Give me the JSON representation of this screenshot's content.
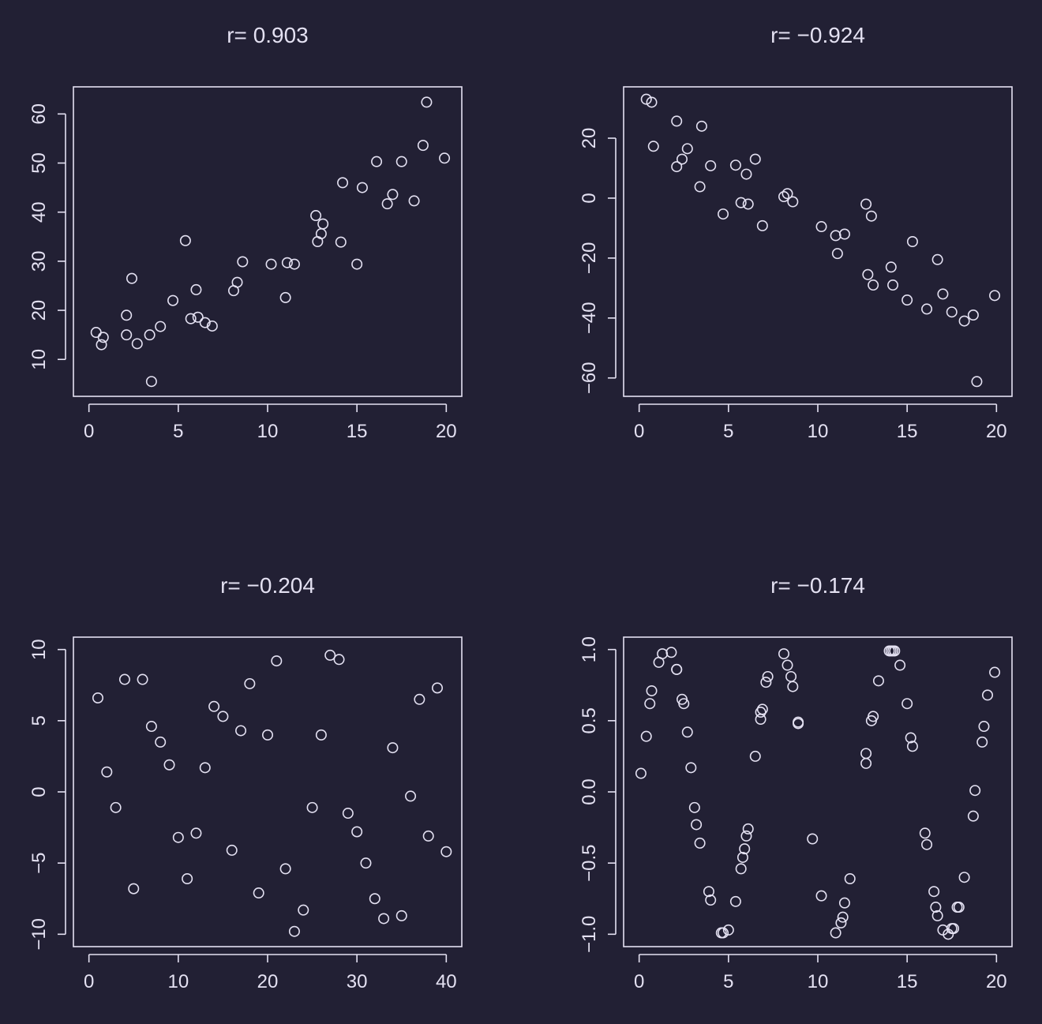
{
  "theme": {
    "background": "#222034",
    "foreground": "#e4e1f2"
  },
  "chart_data": [
    {
      "type": "scatter",
      "title": "r= 0.903",
      "xlabel": "",
      "ylabel": "",
      "xlim": [
        0,
        20
      ],
      "ylim": [
        5,
        63
      ],
      "xticks": [
        0,
        5,
        10,
        15,
        20
      ],
      "yticks": [
        10,
        20,
        30,
        40,
        50,
        60
      ],
      "xtick_labels": [
        "0",
        "5",
        "10",
        "15",
        "20"
      ],
      "ytick_labels": [
        "10",
        "20",
        "30",
        "40",
        "50",
        "60"
      ],
      "grid": false,
      "marker": "open-circle",
      "x": [
        0.4,
        0.7,
        0.8,
        2.1,
        2.1,
        2.4,
        2.7,
        3.4,
        3.5,
        4.0,
        4.7,
        5.4,
        5.7,
        6.0,
        6.1,
        6.5,
        6.9,
        8.1,
        8.3,
        8.6,
        10.2,
        11.0,
        11.1,
        11.5,
        12.7,
        12.8,
        13.0,
        13.1,
        14.1,
        14.2,
        15.0,
        15.3,
        16.1,
        16.7,
        17.0,
        17.5,
        18.2,
        18.7,
        18.9,
        19.9
      ],
      "y": [
        15.5,
        13.0,
        14.5,
        19.0,
        15.0,
        26.5,
        13.2,
        15.0,
        5.5,
        16.7,
        22.0,
        34.2,
        18.3,
        24.2,
        18.6,
        17.5,
        16.8,
        24.0,
        25.7,
        29.9,
        29.4,
        22.6,
        29.7,
        29.4,
        39.3,
        34.0,
        35.6,
        37.6,
        33.9,
        46.0,
        29.4,
        45.0,
        50.3,
        41.7,
        43.6,
        50.3,
        42.3,
        53.6,
        62.4,
        51.0
      ]
    },
    {
      "type": "scatter",
      "title": "r= −0.924",
      "xlabel": "",
      "ylabel": "",
      "xlim": [
        0,
        20
      ],
      "ylim": [
        -62,
        33
      ],
      "xticks": [
        0,
        5,
        10,
        15,
        20
      ],
      "yticks": [
        -60,
        -40,
        -20,
        0,
        20
      ],
      "xtick_labels": [
        "0",
        "5",
        "10",
        "15",
        "20"
      ],
      "ytick_labels": [
        "−60",
        "−40",
        "−20",
        "0",
        "20"
      ],
      "grid": false,
      "marker": "open-circle",
      "x": [
        0.4,
        0.7,
        0.8,
        2.1,
        2.1,
        2.4,
        2.7,
        3.4,
        3.5,
        4.0,
        4.7,
        5.4,
        5.7,
        6.0,
        6.1,
        6.5,
        6.9,
        8.1,
        8.3,
        8.6,
        10.2,
        11.0,
        11.1,
        11.5,
        12.7,
        12.8,
        13.0,
        13.1,
        14.1,
        14.2,
        15.0,
        15.3,
        16.1,
        16.7,
        17.0,
        17.5,
        18.2,
        18.7,
        18.9,
        19.9
      ],
      "y": [
        33.0,
        32.0,
        17.3,
        10.5,
        25.7,
        13.0,
        16.5,
        3.8,
        24.0,
        10.8,
        -5.3,
        11.0,
        -1.5,
        8.0,
        -2.0,
        13.0,
        -9.2,
        0.5,
        1.5,
        -1.2,
        -9.5,
        -12.5,
        -18.5,
        -12.0,
        -2.0,
        -25.5,
        -6.0,
        -29.0,
        -23.0,
        -29.0,
        -34.0,
        -14.5,
        -37.0,
        -20.5,
        -32.0,
        -38.0,
        -41.0,
        -39.0,
        -61.2,
        -32.5
      ]
    },
    {
      "type": "scatter",
      "title": "r= −0.204",
      "xlabel": "",
      "ylabel": "",
      "xlim": [
        0,
        40
      ],
      "ylim": [
        -10,
        10
      ],
      "xticks": [
        0,
        10,
        20,
        30,
        40
      ],
      "yticks": [
        -10,
        -5,
        0,
        5,
        10
      ],
      "xtick_labels": [
        "0",
        "10",
        "20",
        "30",
        "40"
      ],
      "ytick_labels": [
        "−10",
        "−5",
        "0",
        "5",
        "10"
      ],
      "grid": false,
      "marker": "open-circle",
      "x": [
        1,
        2,
        3,
        4,
        5,
        6,
        7,
        8,
        9,
        10,
        11,
        12,
        13,
        14,
        15,
        16,
        17,
        18,
        19,
        20,
        21,
        22,
        23,
        24,
        25,
        26,
        27,
        28,
        29,
        30,
        31,
        32,
        33,
        34,
        35,
        36,
        37,
        38,
        39,
        40
      ],
      "y": [
        6.6,
        1.4,
        -1.1,
        7.9,
        -6.8,
        7.9,
        4.6,
        3.5,
        1.9,
        -3.2,
        -6.1,
        -2.9,
        1.7,
        6.0,
        5.3,
        -4.1,
        4.3,
        7.6,
        -7.1,
        4.0,
        9.2,
        -5.4,
        -9.8,
        -8.3,
        -1.1,
        4.0,
        9.6,
        9.3,
        -1.5,
        -2.8,
        -5.0,
        -7.5,
        -8.9,
        3.1,
        -8.7,
        -0.3,
        6.5,
        -3.1,
        7.3,
        -4.2
      ]
    },
    {
      "type": "scatter",
      "title": "r= −0.174",
      "xlabel": "",
      "ylabel": "",
      "xlim": [
        0,
        20
      ],
      "ylim": [
        -1,
        1
      ],
      "xticks": [
        0,
        5,
        10,
        15,
        20
      ],
      "yticks": [
        -1.0,
        -0.5,
        0.0,
        0.5,
        1.0
      ],
      "xtick_labels": [
        "0",
        "5",
        "10",
        "15",
        "20"
      ],
      "ytick_labels": [
        "−1.0",
        "−0.5",
        "0.0",
        "0.5",
        "1.0"
      ],
      "grid": false,
      "marker": "open-circle",
      "x": [
        0.1,
        0.4,
        0.6,
        0.7,
        1.1,
        1.3,
        1.8,
        2.1,
        2.1,
        2.4,
        2.5,
        2.7,
        2.9,
        3.1,
        3.2,
        3.4,
        3.9,
        4.0,
        4.6,
        4.7,
        5.0,
        5.4,
        5.7,
        5.8,
        5.9,
        6.0,
        6.1,
        6.5,
        6.8,
        6.8,
        6.9,
        7.1,
        7.2,
        8.1,
        8.3,
        8.5,
        8.6,
        8.9,
        8.9,
        9.7,
        10.2,
        11.0,
        11.3,
        11.4,
        11.5,
        11.8,
        12.7,
        12.7,
        13.0,
        13.1,
        13.4,
        14.0,
        14.1,
        14.2,
        14.3,
        14.6,
        15.0,
        15.2,
        15.3,
        16.0,
        16.1,
        16.5,
        16.6,
        16.7,
        17.0,
        17.3,
        17.5,
        17.6,
        17.8,
        17.9,
        18.2,
        18.7,
        18.8,
        19.2,
        19.3,
        19.5,
        19.9
      ],
      "y": [
        0.13,
        0.39,
        0.62,
        0.71,
        0.91,
        0.97,
        0.98,
        0.86,
        0.86,
        0.65,
        0.62,
        0.42,
        0.17,
        -0.11,
        -0.23,
        -0.36,
        -0.7,
        -0.76,
        -0.99,
        -0.99,
        -0.97,
        -0.77,
        -0.54,
        -0.46,
        -0.4,
        -0.31,
        -0.26,
        0.25,
        0.51,
        0.56,
        0.58,
        0.77,
        0.81,
        0.97,
        0.89,
        0.81,
        0.74,
        0.48,
        0.49,
        -0.33,
        -0.73,
        -0.99,
        -0.92,
        -0.88,
        -0.78,
        -0.61,
        0.2,
        0.27,
        0.5,
        0.53,
        0.78,
        0.99,
        0.99,
        0.99,
        0.99,
        0.89,
        0.62,
        0.38,
        0.32,
        -0.29,
        -0.37,
        -0.7,
        -0.81,
        -0.87,
        -0.97,
        -1.0,
        -0.96,
        -0.96,
        -0.81,
        -0.81,
        -0.6,
        -0.17,
        0.01,
        0.35,
        0.46,
        0.68,
        0.84
      ]
    }
  ]
}
